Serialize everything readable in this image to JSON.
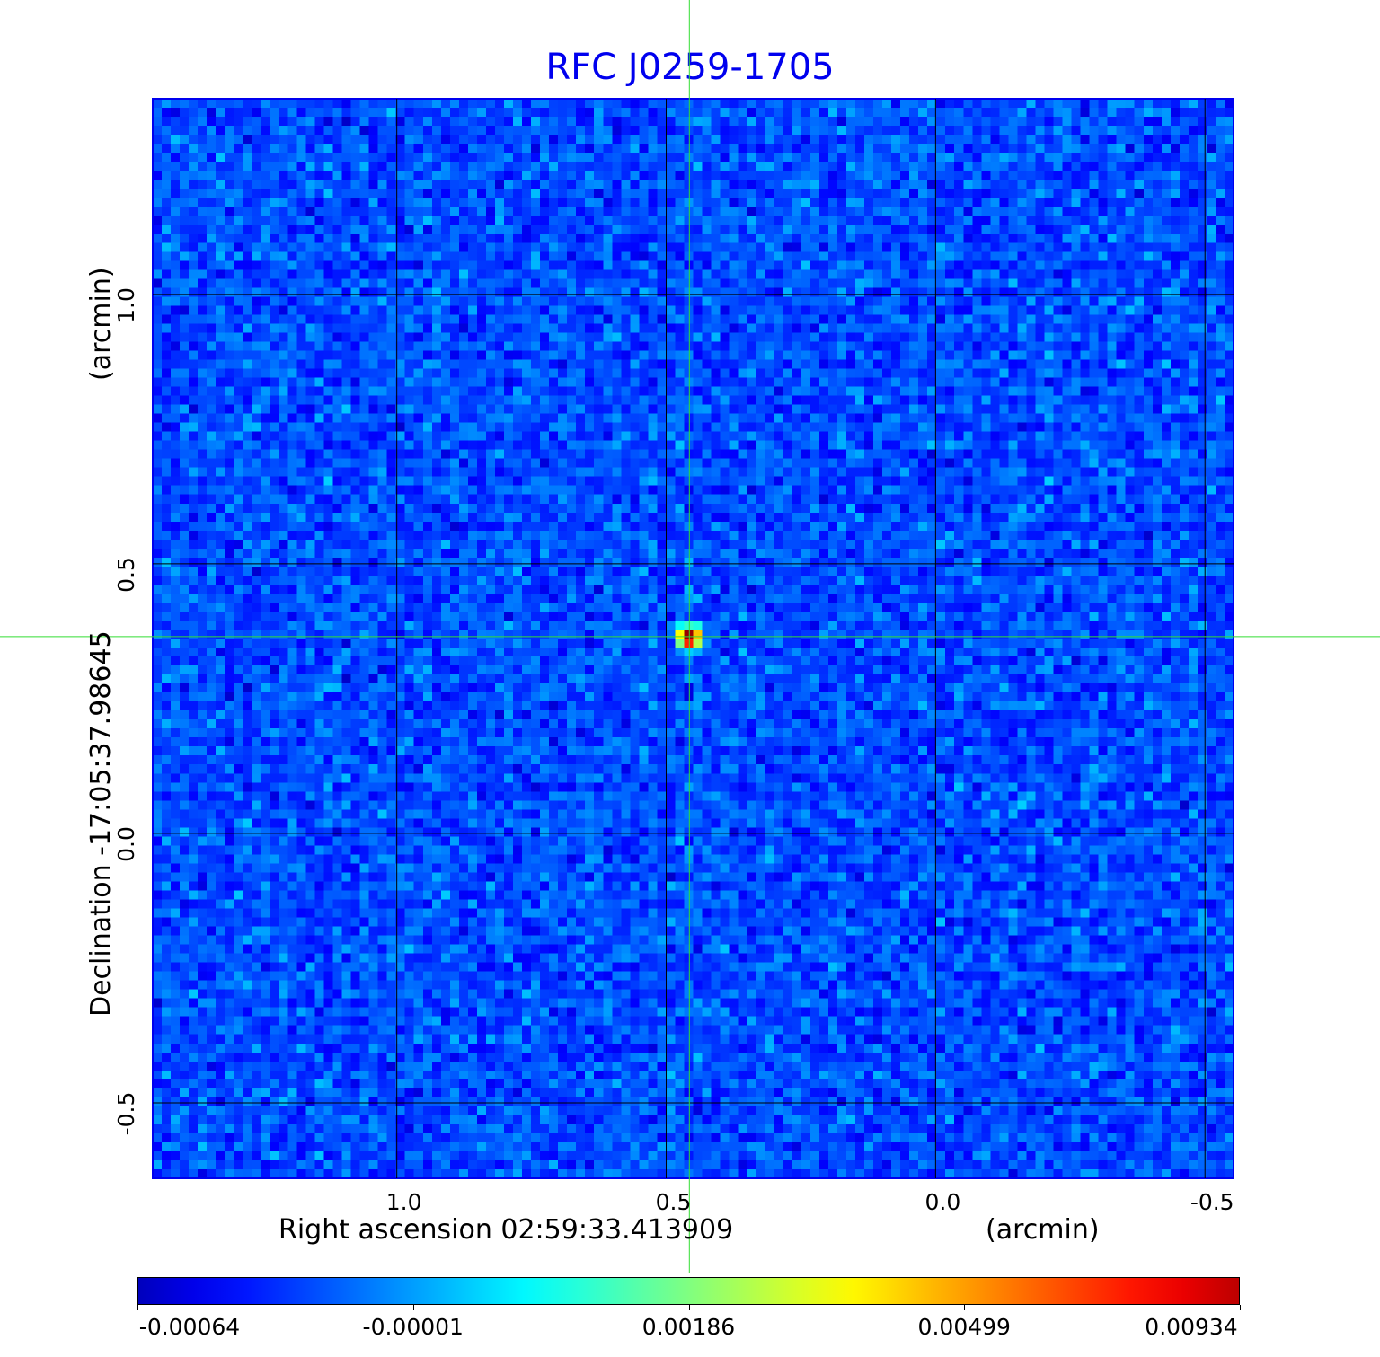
{
  "chart_data": {
    "type": "heatmap",
    "title": "RFC J0259-1705",
    "xlabel": "Right ascension  02:59:33.413909",
    "xunit": "(arcmin)",
    "ylabel": "Declination  -17:05:37.98645",
    "yunit": "(arcmin)",
    "xlim": [
      1.453,
      -0.553
    ],
    "ylim": [
      -0.64,
      1.363
    ],
    "xticks": [
      "1.0",
      "0.5",
      "0.0",
      "-0.5"
    ],
    "xtick_values": [
      1.0,
      0.5,
      0.0,
      -0.5
    ],
    "yticks": [
      "1.0",
      "0.5",
      "0.0",
      "-0.5"
    ],
    "ytick_values": [
      1.0,
      0.5,
      0.0,
      -0.5
    ],
    "grid": true,
    "crosshair": {
      "x": 0.457,
      "y": 0.365
    },
    "source_peak": {
      "x": 0.457,
      "y": 0.365,
      "value": 0.00934
    },
    "colormap": "jet",
    "colorbar": {
      "ticks": [
        "-0.00064",
        "-0.00001",
        "0.00186",
        "0.00499",
        "0.00934"
      ],
      "min": -0.00064,
      "max": 0.00934,
      "placement": "bottom"
    },
    "image_pixels_per_axis": 120
  },
  "colors": {
    "title": "#0000ee",
    "frame": "#0000ee",
    "crosshair": "#33dd33",
    "grid": "#000000"
  }
}
